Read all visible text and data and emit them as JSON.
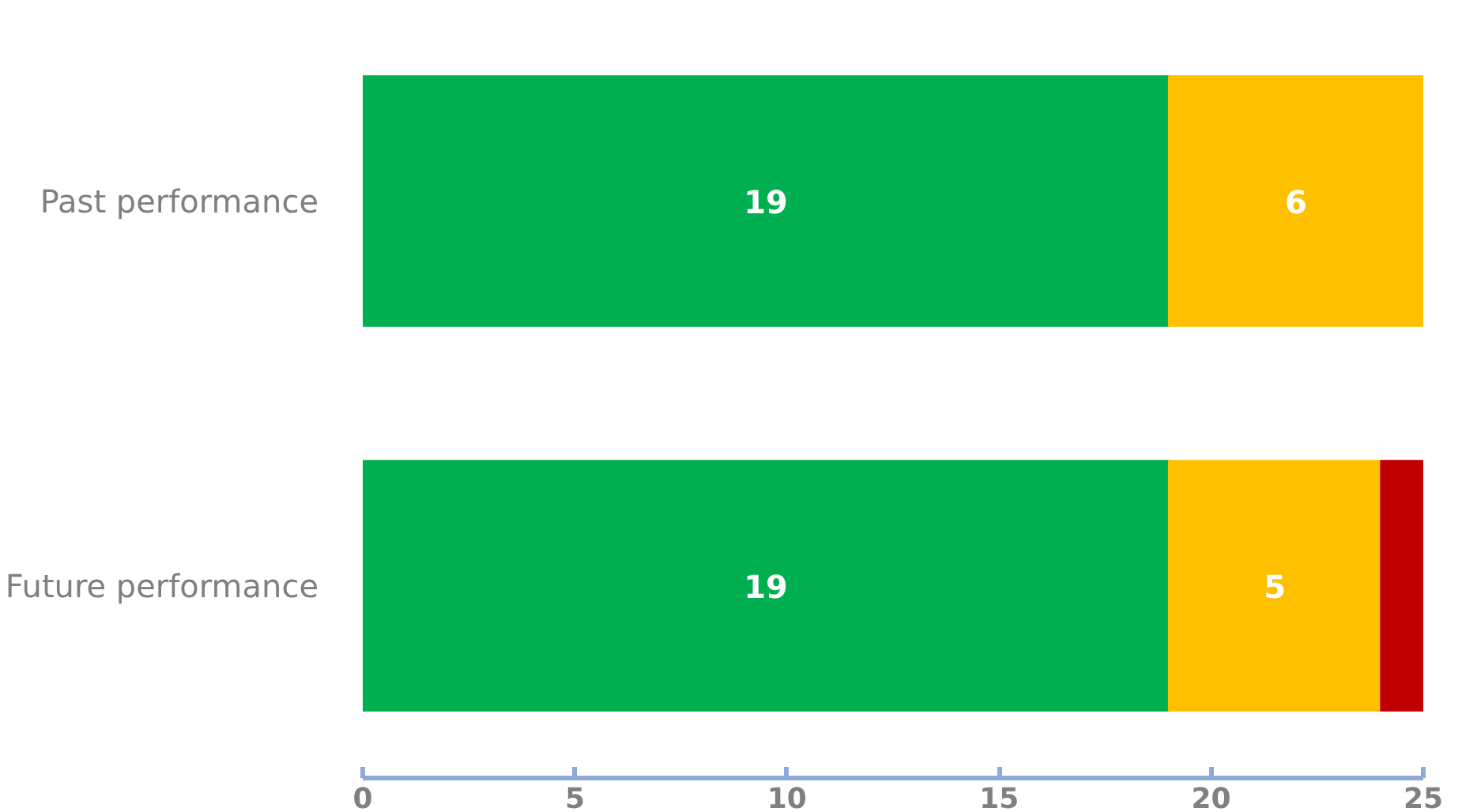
{
  "chart_data": {
    "type": "bar",
    "orientation": "horizontal",
    "stacked": true,
    "categories": [
      "Past performance",
      "Future performance"
    ],
    "series": [
      {
        "color": "#00b050",
        "values": [
          19,
          19
        ],
        "value_labels": [
          "19",
          "19"
        ]
      },
      {
        "color": "#ffc000",
        "values": [
          6,
          5
        ],
        "value_labels": [
          "6",
          "5"
        ]
      },
      {
        "color": "#c00000",
        "values": [
          null,
          1
        ],
        "value_labels": [
          null,
          null
        ]
      }
    ],
    "xlim": [
      0,
      25
    ],
    "xticks": [
      0,
      5,
      10,
      15,
      20,
      25
    ],
    "grid": false
  }
}
